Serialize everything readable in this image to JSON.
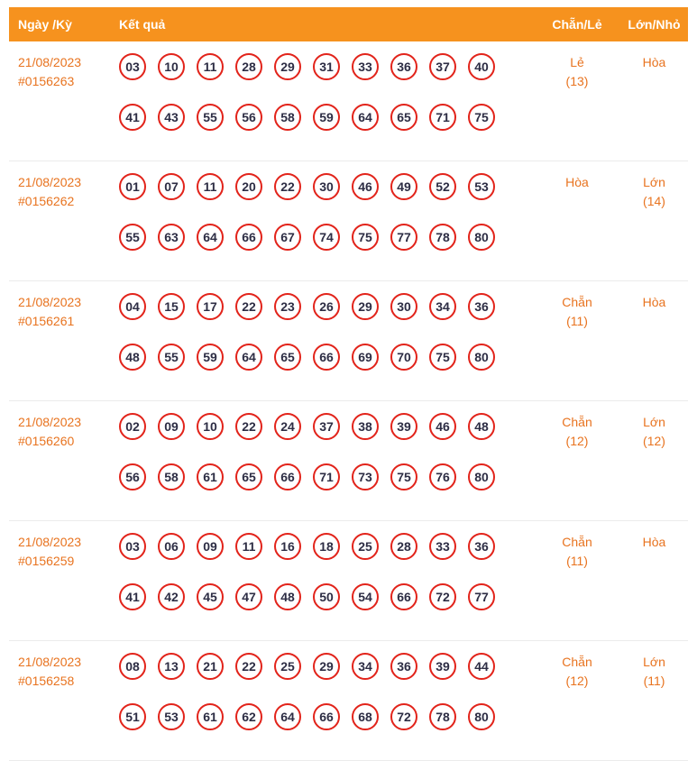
{
  "header": {
    "col_date": "Ngày /Kỳ",
    "col_result": "Kết quả",
    "col_chanle": "Chẵn/Lẻ",
    "col_lonnho": "Lớn/Nhỏ"
  },
  "rows": [
    {
      "date": "21/08/2023",
      "period": "#0156263",
      "line1": [
        "03",
        "10",
        "11",
        "28",
        "29",
        "31",
        "33",
        "36",
        "37",
        "40"
      ],
      "line2": [
        "41",
        "43",
        "55",
        "56",
        "58",
        "59",
        "64",
        "65",
        "71",
        "75"
      ],
      "chanle_value": "Lẻ",
      "chanle_count": "(13)",
      "lonnho_value": "Hòa",
      "lonnho_count": ""
    },
    {
      "date": "21/08/2023",
      "period": "#0156262",
      "line1": [
        "01",
        "07",
        "11",
        "20",
        "22",
        "30",
        "46",
        "49",
        "52",
        "53"
      ],
      "line2": [
        "55",
        "63",
        "64",
        "66",
        "67",
        "74",
        "75",
        "77",
        "78",
        "80"
      ],
      "chanle_value": "Hòa",
      "chanle_count": "",
      "lonnho_value": "Lớn",
      "lonnho_count": "(14)"
    },
    {
      "date": "21/08/2023",
      "period": "#0156261",
      "line1": [
        "04",
        "15",
        "17",
        "22",
        "23",
        "26",
        "29",
        "30",
        "34",
        "36"
      ],
      "line2": [
        "48",
        "55",
        "59",
        "64",
        "65",
        "66",
        "69",
        "70",
        "75",
        "80"
      ],
      "chanle_value": "Chẵn",
      "chanle_count": "(11)",
      "lonnho_value": "Hòa",
      "lonnho_count": ""
    },
    {
      "date": "21/08/2023",
      "period": "#0156260",
      "line1": [
        "02",
        "09",
        "10",
        "22",
        "24",
        "37",
        "38",
        "39",
        "46",
        "48"
      ],
      "line2": [
        "56",
        "58",
        "61",
        "65",
        "66",
        "71",
        "73",
        "75",
        "76",
        "80"
      ],
      "chanle_value": "Chẵn",
      "chanle_count": "(12)",
      "lonnho_value": "Lớn",
      "lonnho_count": "(12)"
    },
    {
      "date": "21/08/2023",
      "period": "#0156259",
      "line1": [
        "03",
        "06",
        "09",
        "11",
        "16",
        "18",
        "25",
        "28",
        "33",
        "36"
      ],
      "line2": [
        "41",
        "42",
        "45",
        "47",
        "48",
        "50",
        "54",
        "66",
        "72",
        "77"
      ],
      "chanle_value": "Chẵn",
      "chanle_count": "(11)",
      "lonnho_value": "Hòa",
      "lonnho_count": ""
    },
    {
      "date": "21/08/2023",
      "period": "#0156258",
      "line1": [
        "08",
        "13",
        "21",
        "22",
        "25",
        "29",
        "34",
        "36",
        "39",
        "44"
      ],
      "line2": [
        "51",
        "53",
        "61",
        "62",
        "64",
        "66",
        "68",
        "72",
        "78",
        "80"
      ],
      "chanle_value": "Chẵn",
      "chanle_count": "(12)",
      "lonnho_value": "Lớn",
      "lonnho_count": "(11)"
    }
  ],
  "colors": {
    "header_bg": "#F6921E",
    "header_text": "#FFFFFF",
    "accent_text": "#E8731F",
    "ball_border": "#E2231A",
    "ball_number": "#2D2D44",
    "row_divider": "#EBEBEB",
    "background": "#FFFFFF"
  }
}
